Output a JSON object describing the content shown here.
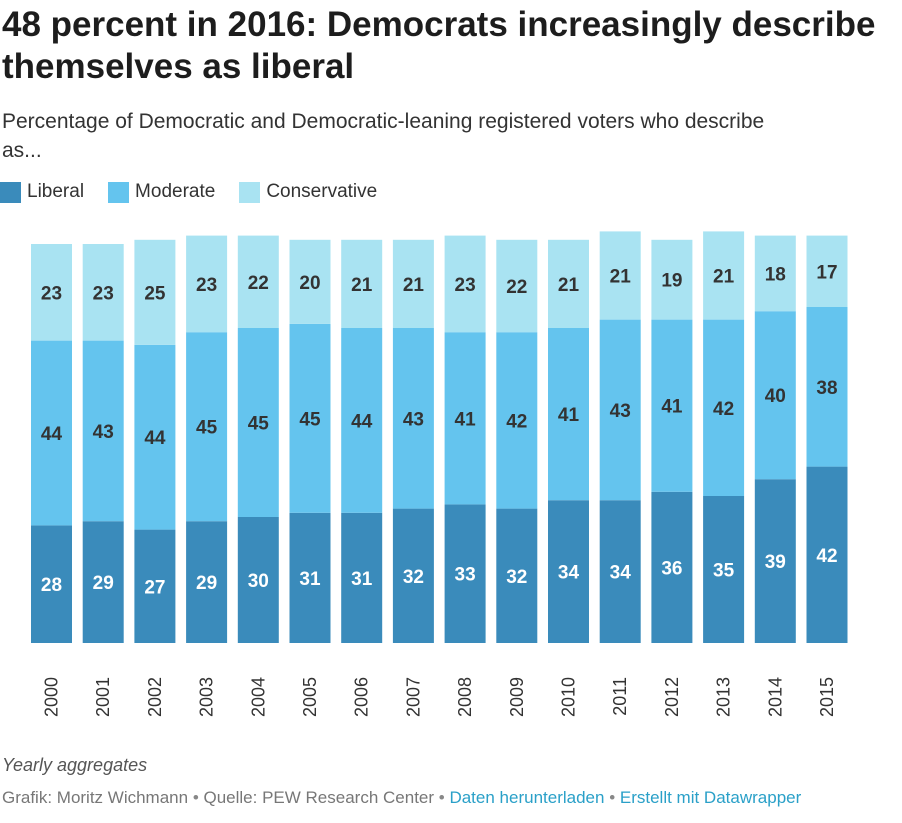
{
  "header": {
    "title_line1": "48 percent in 2016: Democrats increasingly describe",
    "title_line2": "themselves as liberal",
    "subtitle_line1": "Percentage of Democratic and Democratic-leaning registered voters who describe",
    "subtitle_line2": "as..."
  },
  "chart_data": {
    "type": "bar",
    "stacked": true,
    "categories": [
      "2000",
      "2001",
      "2002",
      "2003",
      "2004",
      "2005",
      "2006",
      "2007",
      "2008",
      "2009",
      "2010",
      "2011",
      "2012",
      "2013",
      "2014",
      "2015"
    ],
    "series": [
      {
        "name": "Liberal",
        "color": "#3a8bbb",
        "values": [
          28,
          29,
          27,
          29,
          30,
          31,
          31,
          32,
          33,
          32,
          34,
          34,
          36,
          35,
          39,
          42
        ]
      },
      {
        "name": "Moderate",
        "color": "#64c4ee",
        "values": [
          44,
          43,
          44,
          45,
          45,
          45,
          44,
          43,
          41,
          42,
          41,
          43,
          41,
          42,
          40,
          38
        ]
      },
      {
        "name": "Conservative",
        "color": "#a9e3f2",
        "values": [
          23,
          23,
          25,
          23,
          22,
          20,
          21,
          21,
          23,
          22,
          21,
          21,
          19,
          21,
          18,
          17
        ]
      }
    ],
    "legend_position": "top-left",
    "grid": false,
    "ylim": [
      0,
      100
    ]
  },
  "footer": {
    "note": "Yearly aggregates",
    "credit": "Grafik: Moritz Wichmann",
    "separator": " • ",
    "source": "Quelle: PEW Research Center",
    "download_link": "Daten herunterladen",
    "made_with_link": "Erstellt mit Datawrapper"
  }
}
